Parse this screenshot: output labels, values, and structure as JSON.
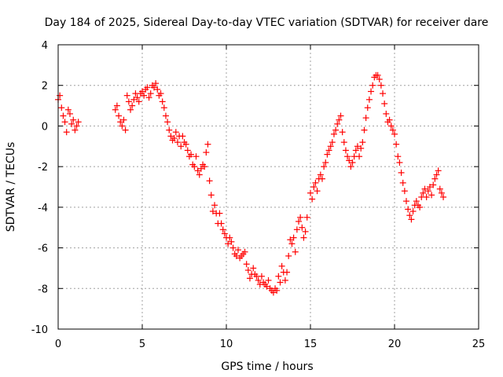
{
  "chart_data": {
    "type": "scatter",
    "title": "Day 184 of 2025, Sidereal Day-to-day VTEC variation (SDTVAR) for receiver dare",
    "xlabel": "GPS time / hours",
    "ylabel": "SDTVAR / TECUs",
    "xlim": [
      0,
      25
    ],
    "ylim": [
      -10,
      4
    ],
    "xticks": [
      "0",
      "5",
      "10",
      "15",
      "20",
      "25"
    ],
    "yticks": [
      "4",
      "2",
      "0",
      "-2",
      "-4",
      "-6",
      "-8",
      "-10"
    ],
    "grid": true,
    "marker": "+",
    "color": "#ff0000",
    "series": [
      {
        "name": "SDTVAR",
        "x": [
          0.0,
          0.1,
          0.2,
          0.3,
          0.4,
          0.5,
          0.6,
          0.7,
          0.8,
          0.9,
          1.0,
          1.1,
          1.2,
          3.4,
          3.5,
          3.6,
          3.7,
          3.8,
          3.9,
          4.0,
          4.1,
          4.2,
          4.3,
          4.4,
          4.5,
          4.6,
          4.7,
          4.8,
          4.9,
          5.0,
          5.1,
          5.2,
          5.3,
          5.4,
          5.5,
          5.6,
          5.7,
          5.8,
          5.9,
          6.0,
          6.1,
          6.2,
          6.3,
          6.4,
          6.5,
          6.6,
          6.7,
          6.8,
          6.9,
          7.0,
          7.1,
          7.2,
          7.3,
          7.4,
          7.5,
          7.6,
          7.7,
          7.8,
          7.9,
          8.0,
          8.1,
          8.2,
          8.3,
          8.4,
          8.5,
          8.6,
          8.7,
          8.8,
          8.9,
          9.0,
          9.1,
          9.2,
          9.3,
          9.4,
          9.5,
          9.6,
          9.7,
          9.8,
          9.9,
          10.0,
          10.1,
          10.2,
          10.3,
          10.4,
          10.5,
          10.6,
          10.7,
          10.8,
          10.9,
          11.0,
          11.1,
          11.2,
          11.3,
          11.4,
          11.5,
          11.6,
          11.7,
          11.8,
          11.9,
          12.0,
          12.1,
          12.2,
          12.3,
          12.4,
          12.5,
          12.6,
          12.7,
          12.8,
          12.9,
          13.0,
          13.1,
          13.2,
          13.3,
          13.4,
          13.5,
          13.6,
          13.7,
          13.8,
          13.9,
          14.0,
          14.1,
          14.2,
          14.3,
          14.4,
          14.5,
          14.6,
          14.7,
          14.8,
          15.0,
          15.1,
          15.2,
          15.3,
          15.4,
          15.5,
          15.6,
          15.7,
          15.8,
          15.9,
          16.0,
          16.1,
          16.2,
          16.3,
          16.4,
          16.5,
          16.6,
          16.7,
          16.8,
          16.9,
          17.0,
          17.1,
          17.2,
          17.3,
          17.4,
          17.5,
          17.6,
          17.7,
          17.8,
          17.9,
          18.0,
          18.1,
          18.2,
          18.3,
          18.4,
          18.5,
          18.6,
          18.7,
          18.8,
          18.9,
          19.0,
          19.1,
          19.2,
          19.3,
          19.4,
          19.5,
          19.6,
          19.7,
          19.8,
          19.9,
          20.0,
          20.1,
          20.2,
          20.3,
          20.4,
          20.5,
          20.6,
          20.7,
          20.8,
          20.9,
          21.0,
          21.1,
          21.2,
          21.3,
          21.4,
          21.5,
          21.6,
          21.7,
          21.8,
          21.9,
          22.0,
          22.1,
          22.2,
          22.3,
          22.4,
          22.5,
          22.6,
          22.7,
          22.8,
          22.9
        ],
        "y": [
          1.3,
          1.5,
          0.9,
          0.5,
          0.2,
          -0.3,
          0.8,
          0.6,
          0.1,
          0.3,
          -0.2,
          0.0,
          0.2,
          0.8,
          1.0,
          0.5,
          0.2,
          0.0,
          0.3,
          -0.2,
          1.5,
          1.2,
          0.8,
          1.0,
          1.3,
          1.6,
          1.4,
          1.2,
          1.6,
          1.7,
          1.5,
          1.8,
          1.9,
          1.4,
          1.6,
          2.0,
          1.9,
          2.1,
          1.8,
          1.5,
          1.6,
          1.2,
          0.9,
          0.5,
          0.2,
          -0.2,
          -0.5,
          -0.7,
          -0.6,
          -0.3,
          -0.8,
          -0.5,
          -1.0,
          -0.5,
          -0.8,
          -0.9,
          -1.2,
          -1.5,
          -1.4,
          -1.9,
          -2.0,
          -1.5,
          -2.2,
          -2.4,
          -2.1,
          -1.9,
          -2.0,
          -1.3,
          -0.9,
          -2.7,
          -3.4,
          -4.2,
          -3.9,
          -4.3,
          -4.8,
          -4.3,
          -4.8,
          -5.1,
          -5.3,
          -5.5,
          -5.8,
          -5.5,
          -5.7,
          -6.0,
          -6.3,
          -6.4,
          -6.1,
          -6.5,
          -6.4,
          -6.3,
          -6.2,
          -6.8,
          -7.1,
          -7.5,
          -7.3,
          -7.0,
          -7.3,
          -7.4,
          -7.6,
          -7.8,
          -7.4,
          -7.7,
          -7.8,
          -7.9,
          -7.6,
          -8.0,
          -8.1,
          -8.2,
          -8.0,
          -8.1,
          -7.4,
          -7.7,
          -6.9,
          -7.2,
          -7.6,
          -7.2,
          -6.4,
          -5.6,
          -5.8,
          -5.5,
          -6.2,
          -5.1,
          -4.7,
          -4.5,
          -5.0,
          -5.5,
          -5.2,
          -4.5,
          -3.3,
          -3.6,
          -3.0,
          -2.8,
          -3.2,
          -2.6,
          -2.4,
          -2.6,
          -2.0,
          -1.8,
          -1.4,
          -1.2,
          -1.0,
          -0.8,
          -0.4,
          -0.2,
          0.1,
          0.3,
          0.5,
          -0.3,
          -0.8,
          -1.2,
          -1.5,
          -1.7,
          -2.0,
          -1.8,
          -1.5,
          -1.2,
          -1.0,
          -1.5,
          -1.1,
          -0.8,
          -0.2,
          0.4,
          0.9,
          1.3,
          1.7,
          2.0,
          2.4,
          2.5,
          2.5,
          2.3,
          2.0,
          1.6,
          1.1,
          0.6,
          0.2,
          0.3,
          0.0,
          -0.2,
          -0.4,
          -0.9,
          -1.5,
          -1.8,
          -2.3,
          -2.8,
          -3.2,
          -3.7,
          -4.1,
          -4.4,
          -4.6,
          -4.2,
          -3.9,
          -3.7,
          -3.9,
          -4.0,
          -3.5,
          -3.3,
          -3.1,
          -3.5,
          -3.2,
          -3.0,
          -3.4,
          -2.9,
          -2.6,
          -2.4,
          -2.2,
          -3.1,
          -3.3,
          -3.5
        ]
      }
    ]
  }
}
